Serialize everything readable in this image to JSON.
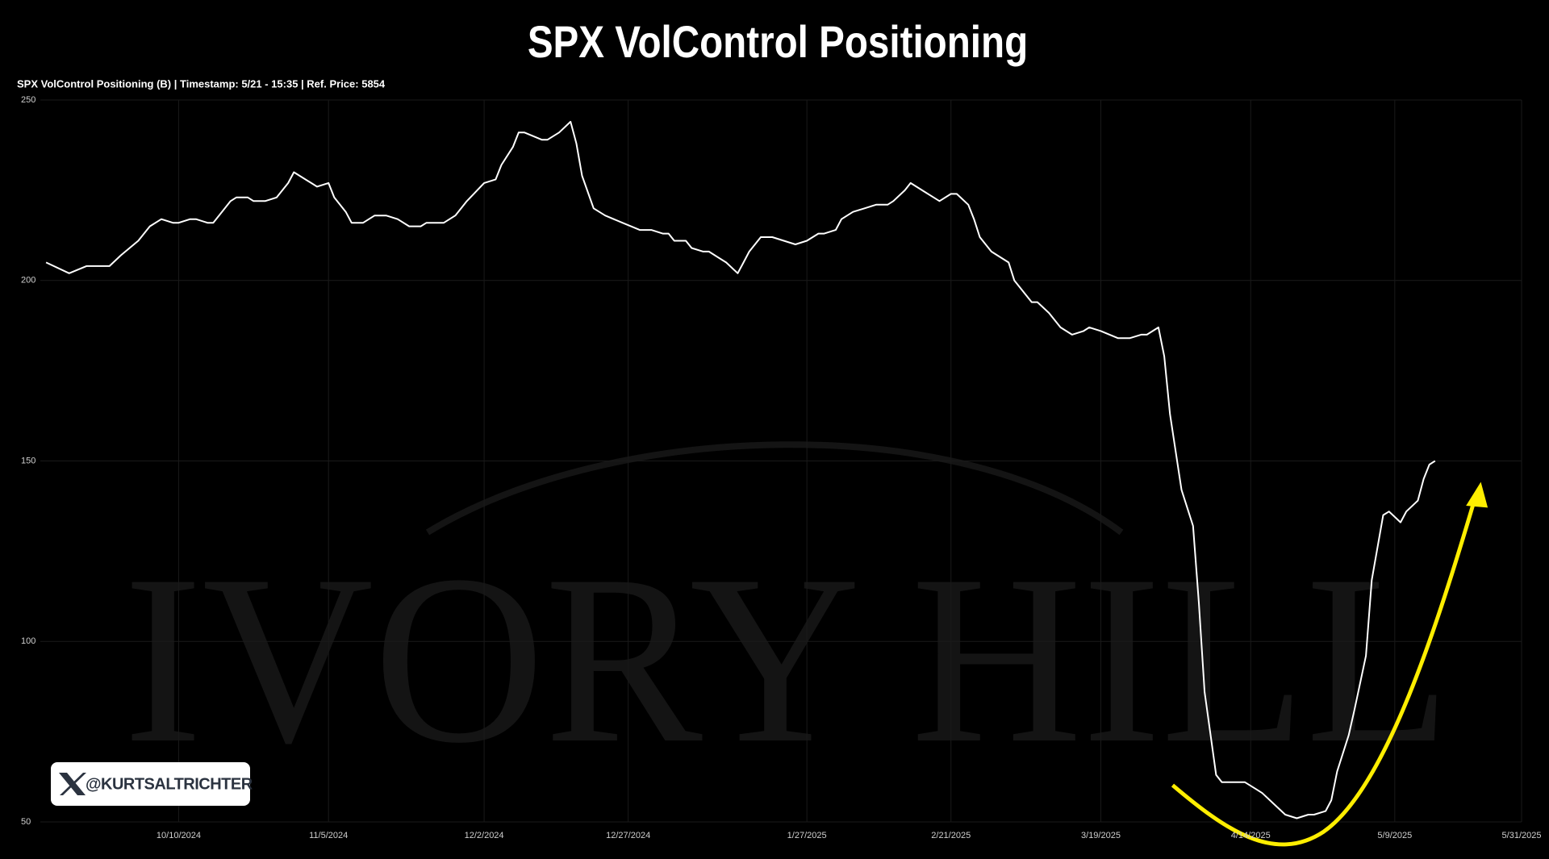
{
  "chart_data": {
    "type": "line",
    "title": "SPX VolControl Positioning",
    "subtitle": "SPX VolControl Positioning (B) | Timestamp: 5/21 - 15:35  | Ref. Price: 5854",
    "watermark": "IVORY HILL",
    "handle": "@KURTSALTRICHTER",
    "color": "#ffffff",
    "grid": true,
    "x": [
      "2024-09-17",
      "2024-09-21",
      "2024-09-24",
      "2024-09-28",
      "2024-09-30",
      "2024-10-03",
      "2024-10-05",
      "2024-10-07",
      "2024-10-09",
      "2024-10-10",
      "2024-10-12",
      "2024-10-13",
      "2024-10-15",
      "2024-10-16",
      "2024-10-17",
      "2024-10-19",
      "2024-10-20",
      "2024-10-22",
      "2024-10-23",
      "2024-10-25",
      "2024-10-27",
      "2024-10-29",
      "2024-10-30",
      "2024-10-31",
      "2024-11-02",
      "2024-11-03",
      "2024-11-05",
      "2024-11-06",
      "2024-11-08",
      "2024-11-09",
      "2024-11-11",
      "2024-11-13",
      "2024-11-15",
      "2024-11-17",
      "2024-11-19",
      "2024-11-21",
      "2024-11-22",
      "2024-11-25",
      "2024-11-27",
      "2024-11-29",
      "2024-12-02",
      "2024-12-04",
      "2024-12-05",
      "2024-12-07",
      "2024-12-08",
      "2024-12-09",
      "2024-12-12",
      "2024-12-13",
      "2024-12-15",
      "2024-12-17",
      "2024-12-18",
      "2024-12-19",
      "2024-12-21",
      "2024-12-23",
      "2024-12-26",
      "2024-12-29",
      "2024-12-31",
      "2025-01-02",
      "2025-01-03",
      "2025-01-04",
      "2025-01-06",
      "2025-01-07",
      "2025-01-09",
      "2025-01-10",
      "2025-01-11",
      "2025-01-13",
      "2025-01-15",
      "2025-01-16",
      "2025-01-17",
      "2025-01-19",
      "2025-01-21",
      "2025-01-25",
      "2025-01-27",
      "2025-01-29",
      "2025-01-30",
      "2025-02-01",
      "2025-02-02",
      "2025-02-04",
      "2025-02-06",
      "2025-02-08",
      "2025-02-10",
      "2025-02-11",
      "2025-02-13",
      "2025-02-14",
      "2025-02-16",
      "2025-02-18",
      "2025-02-19",
      "2025-02-21",
      "2025-02-22",
      "2025-02-24",
      "2025-02-25",
      "2025-02-26",
      "2025-02-28",
      "2025-03-03",
      "2025-03-04",
      "2025-03-07",
      "2025-03-08",
      "2025-03-10",
      "2025-03-12",
      "2025-03-14",
      "2025-03-16",
      "2025-03-17",
      "2025-03-19",
      "2025-03-22",
      "2025-03-24",
      "2025-03-26",
      "2025-03-27",
      "2025-03-29",
      "2025-03-30",
      "2025-03-31",
      "2025-04-02",
      "2025-04-04",
      "2025-04-05",
      "2025-04-06",
      "2025-04-08",
      "2025-04-09",
      "2025-04-11",
      "2025-04-13",
      "2025-04-15",
      "2025-04-16",
      "2025-04-18",
      "2025-04-20",
      "2025-04-22",
      "2025-04-24",
      "2025-04-25",
      "2025-04-27",
      "2025-04-28",
      "2025-04-29",
      "2025-05-01",
      "2025-05-02",
      "2025-05-04",
      "2025-05-05",
      "2025-05-07",
      "2025-05-08",
      "2025-05-10",
      "2025-05-11",
      "2025-05-13",
      "2025-05-14",
      "2025-05-15",
      "2025-05-16"
    ],
    "values": [
      205,
      202,
      204,
      204,
      207,
      211,
      215,
      217,
      216,
      216,
      217,
      217,
      216,
      216,
      218,
      222,
      223,
      223,
      222,
      222,
      223,
      227,
      230,
      229,
      227,
      226,
      227,
      223,
      219,
      216,
      216,
      218,
      218,
      217,
      215,
      215,
      216,
      216,
      218,
      222,
      227,
      228,
      232,
      237,
      241,
      241,
      239,
      239,
      241,
      244,
      238,
      229,
      220,
      218,
      216,
      214,
      214,
      213,
      213,
      211,
      211,
      209,
      208,
      208,
      207,
      205,
      202,
      205,
      208,
      212,
      212,
      210,
      211,
      213,
      213,
      214,
      217,
      219,
      220,
      221,
      221,
      222,
      225,
      227,
      225,
      223,
      222,
      224,
      224,
      221,
      217,
      212,
      208,
      205,
      200,
      194,
      194,
      191,
      187,
      185,
      186,
      187,
      186,
      184,
      184,
      185,
      185,
      187,
      179,
      163,
      142,
      132,
      111,
      86,
      63,
      61,
      61,
      61,
      59,
      58,
      55,
      52,
      51,
      52,
      52,
      53,
      56,
      64,
      74,
      81,
      96,
      117,
      135,
      136,
      133,
      136,
      139,
      145,
      149,
      150
    ],
    "xlim": [
      "2024-09-16",
      "2025-05-31"
    ],
    "xticks": [
      {
        "value": "2024-10-10",
        "label": "10/10/2024"
      },
      {
        "value": "2024-11-05",
        "label": "11/5/2024"
      },
      {
        "value": "2024-12-02",
        "label": "12/2/2024"
      },
      {
        "value": "2024-12-27",
        "label": "12/27/2024"
      },
      {
        "value": "2025-01-27",
        "label": "1/27/2025"
      },
      {
        "value": "2025-02-21",
        "label": "2/21/2025"
      },
      {
        "value": "2025-03-19",
        "label": "3/19/2025"
      },
      {
        "value": "2025-04-14",
        "label": "4/14/2025"
      },
      {
        "value": "2025-05-09",
        "label": "5/9/2025"
      },
      {
        "value": "2025-05-31",
        "label": "5/31/2025"
      }
    ],
    "ylim": [
      50,
      250
    ],
    "yticks": [
      50,
      100,
      150,
      200,
      250
    ]
  }
}
